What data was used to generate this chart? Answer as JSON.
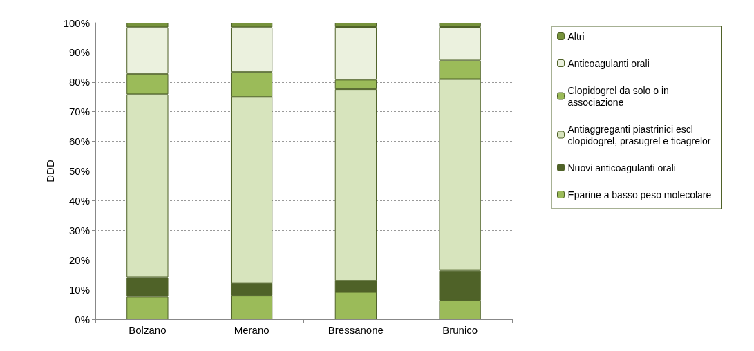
{
  "chart_data": {
    "type": "bar",
    "stacked": true,
    "ylabel": "DDD",
    "categories": [
      "Bolzano",
      "Merano",
      "Bressanone",
      "Brunico"
    ],
    "series": [
      {
        "name": "Eparine a basso peso molecolare",
        "color": "#9bbb59",
        "values": [
          7.6,
          7.9,
          9.2,
          6.3
        ]
      },
      {
        "name": "Nuovi anticoagulanti orali",
        "color": "#4f6228",
        "values": [
          6.5,
          4.3,
          3.8,
          10.1
        ]
      },
      {
        "name": "Antiaggreganti piastrinici escl clopidogrel, prasugrel e ticagrelor",
        "color": "#d7e4bd",
        "values": [
          61.8,
          62.8,
          64.6,
          64.6
        ]
      },
      {
        "name": "Clopidogrel da solo o in associazione",
        "color": "#9bbb59",
        "values": [
          6.9,
          8.4,
          3.2,
          6.3
        ]
      },
      {
        "name": "Anticoagulanti orali",
        "color": "#ebf1de",
        "values": [
          15.7,
          15.1,
          17.8,
          11.3
        ]
      },
      {
        "name": "Altri",
        "color": "#77933c",
        "values": [
          1.5,
          1.5,
          1.4,
          1.4
        ]
      }
    ],
    "ylim": [
      0,
      100
    ],
    "yticks": [
      {
        "value": 0,
        "label": "0%"
      },
      {
        "value": 10,
        "label": "10%"
      },
      {
        "value": 20,
        "label": "20%"
      },
      {
        "value": 30,
        "label": "30%"
      },
      {
        "value": 40,
        "label": "40%"
      },
      {
        "value": 50,
        "label": "50%"
      },
      {
        "value": 60,
        "label": "60%"
      },
      {
        "value": 70,
        "label": "70%"
      },
      {
        "value": 80,
        "label": "80%"
      },
      {
        "value": 90,
        "label": "90%"
      },
      {
        "value": 100,
        "label": "100%"
      }
    ],
    "grid": "y",
    "legend": "right"
  }
}
